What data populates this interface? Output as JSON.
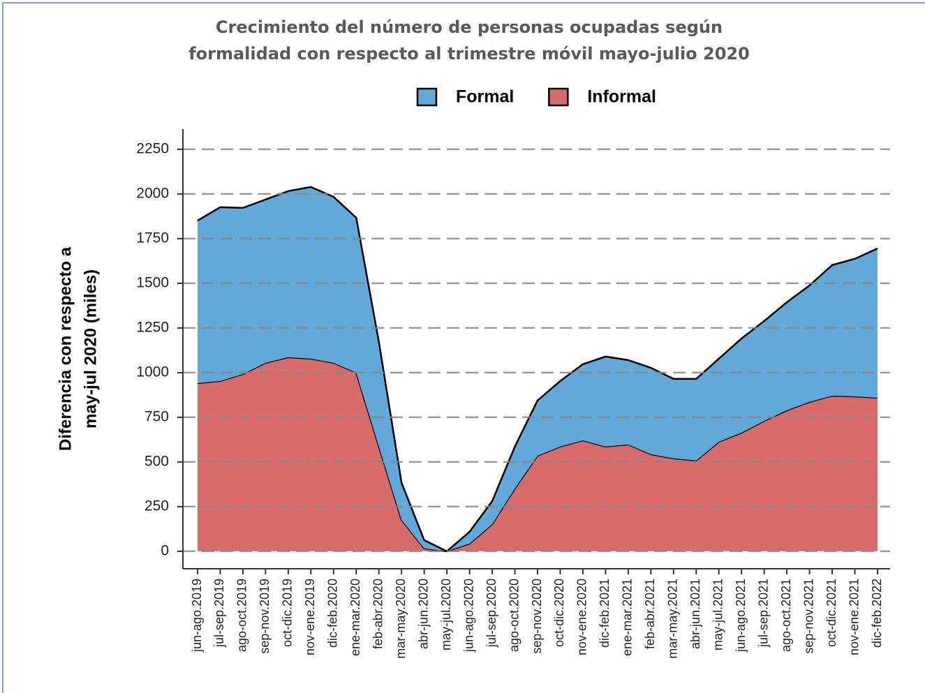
{
  "chart_data": {
    "type": "stacked_area",
    "title": [
      "Crecimiento del número de personas ocupadas según",
      "formalidad con respecto al trimestre móvil mayo-julio 2020"
    ],
    "y_label": [
      "Diferencia con respecto a",
      "may-jul 2020 (miles)"
    ],
    "categories": [
      "jun-ago.2019",
      "jul-sep.2019",
      "ago-oct.2019",
      "sep-nov.2019",
      "oct-dic.2019",
      "nov-ene.2019",
      "dic-feb.2020",
      "ene-mar.2020",
      "feb-abr.2020",
      "mar-may.2020",
      "abr-jun.2020",
      "may-jul.2020",
      "jun-ago.2020",
      "jul-sep.2020",
      "ago-oct.2020",
      "sep-nov.2020",
      "oct-dic.2020",
      "nov-ene.2020",
      "dic-feb.2021",
      "ene-mar.2021",
      "feb-abr.2021",
      "mar-may.2021",
      "abr-jun.2021",
      "may-jul.2021",
      "jun-ago.2021",
      "jul-sep.2021",
      "ago-oct.2021",
      "sep-nov.2021",
      "oct-dic.2021",
      "nov-ene.2021",
      "dic-feb.2022"
    ],
    "series": [
      {
        "name": "Formal",
        "color": "#62a8d8",
        "values": [
          910,
          973,
          930,
          914,
          930,
          961,
          929,
          867,
          586,
          207,
          46,
          0,
          66,
          129,
          234,
          309,
          367,
          426,
          504,
          472,
          484,
          445,
          457,
          465,
          527,
          559,
          605,
          652,
          731,
          770,
          836
        ]
      },
      {
        "name": "Informal",
        "color": "#d86c6c",
        "values": [
          941,
          953,
          992,
          1055,
          1086,
          1078,
          1055,
          1000,
          586,
          176,
          16,
          0,
          43,
          152,
          352,
          535,
          586,
          621,
          586,
          598,
          543,
          520,
          508,
          613,
          664,
          730,
          789,
          836,
          871,
          867,
          859
        ]
      }
    ],
    "ylim": [
      -98,
      2363
    ],
    "yticks": [
      0,
      250,
      500,
      750,
      1000,
      1250,
      1500,
      1750,
      2000,
      2250
    ],
    "grid": true,
    "legend_position": "top"
  }
}
